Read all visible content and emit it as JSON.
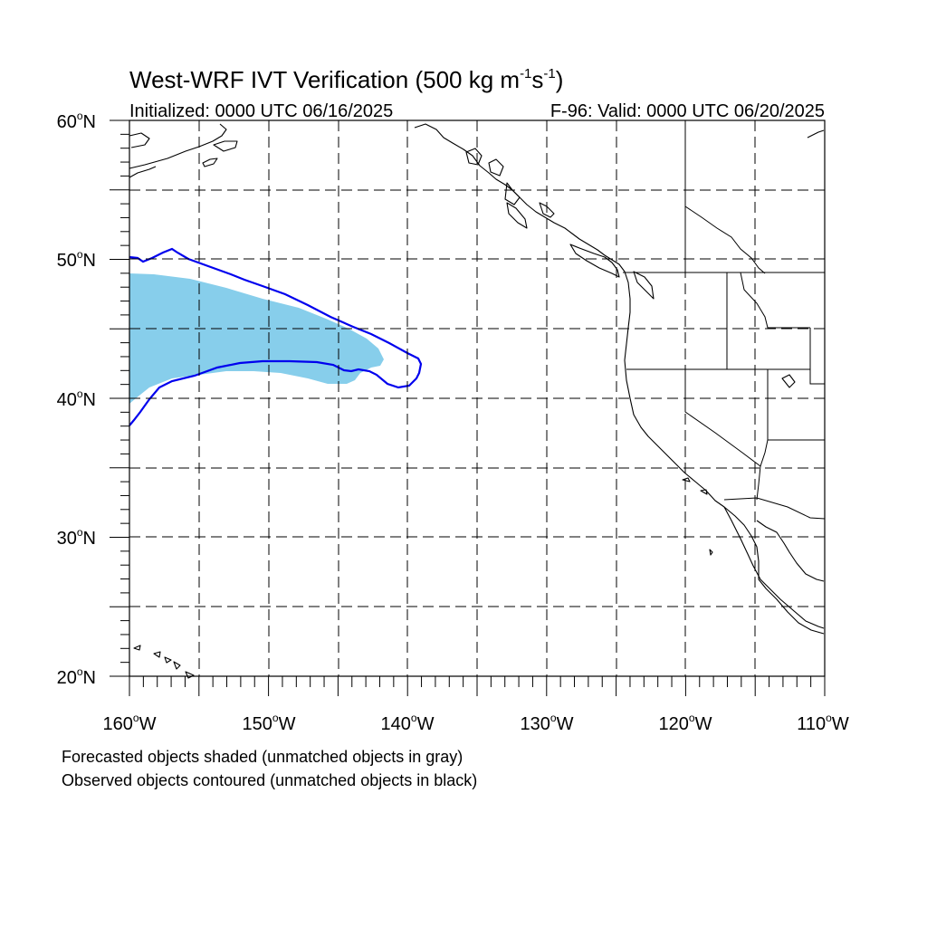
{
  "title": "West-WRF IVT Verification",
  "title_units": "(500 kg m",
  "title_exp1": "-1",
  "title_s": "s",
  "title_exp2": "-1",
  "title_close": ")",
  "subtitle_left": "Initialized: 0000 UTC 06/16/2025",
  "subtitle_right": "F-96: Valid: 0000 UTC 06/20/2025",
  "lat_labels": [
    "60",
    "50",
    "40",
    "30",
    "20"
  ],
  "lat_suffix": "N",
  "lon_labels": [
    "160",
    "150",
    "140",
    "130",
    "120",
    "110"
  ],
  "lon_suffix": "W",
  "degree_symbol": "o",
  "legend_forecast": "Forecasted objects shaded (unmatched objects in gray)",
  "legend_observed": "Observed objects contoured (unmatched objects in black)",
  "colors": {
    "forecast_fill": "#87ceeb",
    "observed_contour": "#0000ee",
    "coastline": "#000000",
    "grid": "#000000"
  },
  "map_extent": {
    "lon_min": -160,
    "lon_max": -110,
    "lat_min": 20,
    "lat_max": 60
  }
}
